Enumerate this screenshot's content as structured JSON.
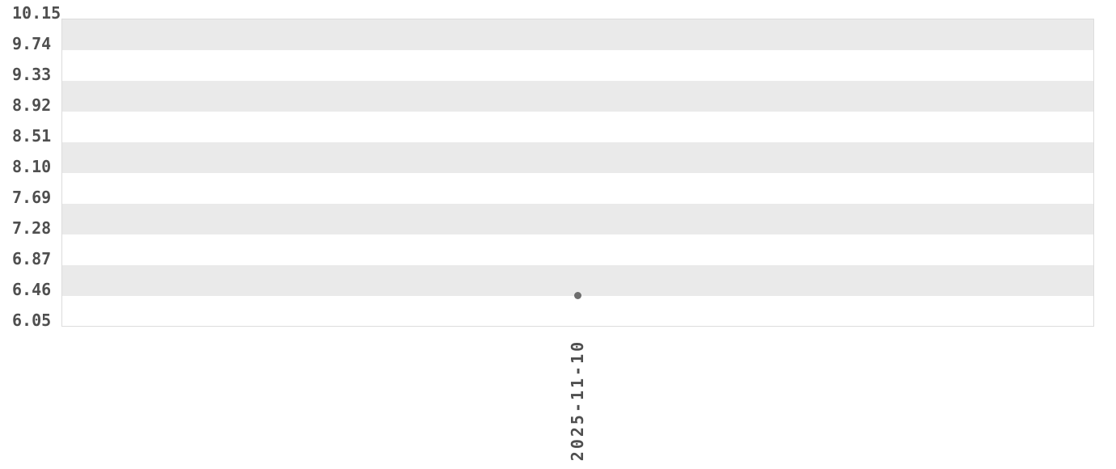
{
  "chart_data": {
    "type": "scatter",
    "title": "",
    "xlabel": "",
    "ylabel": "",
    "x_ticks": [
      "2025-11-10"
    ],
    "y_ticks": [
      "10.15",
      "9.74",
      "9.33",
      "8.92",
      "8.51",
      "8.10",
      "7.69",
      "7.28",
      "6.87",
      "6.46",
      "6.05"
    ],
    "ylim": [
      6.05,
      10.15
    ],
    "y_tick_step": 0.41,
    "series": [
      {
        "name": "points",
        "x": [
          "2025-11-10"
        ],
        "values": [
          6.45
        ]
      }
    ],
    "legend": "none",
    "grid": "alternating-horizontal-bands"
  },
  "colors": {
    "band": "#eaeaea",
    "plot_background": "#ffffff",
    "plot_border": "#dcdcdc",
    "tick_text": "#4f4f4f",
    "point": "#6e6e6e"
  }
}
